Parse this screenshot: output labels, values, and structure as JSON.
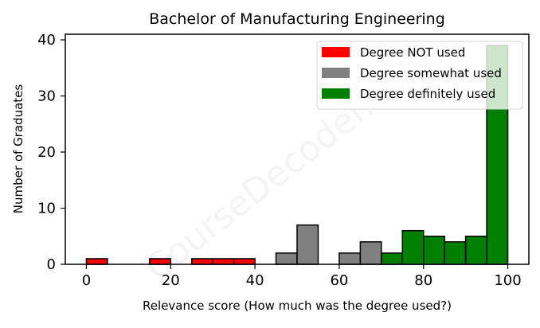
{
  "chart_data": {
    "type": "bar",
    "title": "Bachelor of Manufacturing Engineering",
    "xlabel": "Relevance score (How much was the degree used?)",
    "ylabel": "Number of Graduates",
    "xlim": [
      -5,
      105
    ],
    "ylim": [
      0,
      41
    ],
    "xticks": [
      0,
      20,
      40,
      60,
      80,
      100
    ],
    "yticks": [
      0,
      10,
      20,
      30,
      40
    ],
    "bin_width": 5,
    "grid": false,
    "legend_position": "top-right",
    "watermark": "CourseDecoder.com",
    "series": [
      {
        "name": "Degree NOT used",
        "color": "#ff0000",
        "bins": [
          {
            "x": 0,
            "count": 1
          },
          {
            "x": 5,
            "count": 0
          },
          {
            "x": 10,
            "count": 0
          },
          {
            "x": 15,
            "count": 1
          },
          {
            "x": 20,
            "count": 0
          },
          {
            "x": 25,
            "count": 1
          },
          {
            "x": 30,
            "count": 1
          },
          {
            "x": 35,
            "count": 1
          }
        ]
      },
      {
        "name": "Degree somewhat used",
        "color": "#808080",
        "bins": [
          {
            "x": 45,
            "count": 2
          },
          {
            "x": 50,
            "count": 7
          },
          {
            "x": 55,
            "count": 0
          },
          {
            "x": 60,
            "count": 2
          },
          {
            "x": 65,
            "count": 4
          }
        ]
      },
      {
        "name": "Degree definitely used",
        "color": "#008000",
        "bins": [
          {
            "x": 70,
            "count": 2
          },
          {
            "x": 75,
            "count": 6
          },
          {
            "x": 80,
            "count": 5
          },
          {
            "x": 85,
            "count": 4
          },
          {
            "x": 90,
            "count": 5
          },
          {
            "x": 95,
            "count": 39
          }
        ]
      }
    ]
  }
}
